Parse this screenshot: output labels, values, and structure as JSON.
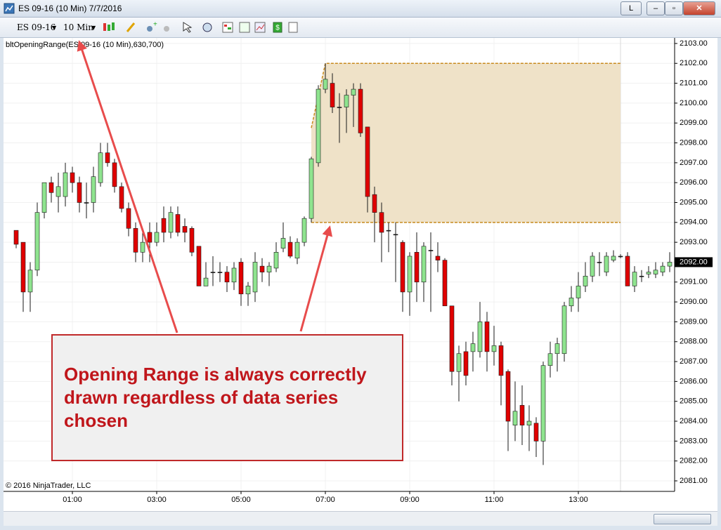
{
  "window": {
    "title": "ES 09-16 (10 Min)  7/7/2016",
    "link_button": "L"
  },
  "toolbar": {
    "instrument": "ES 09-16",
    "interval": "10 Min"
  },
  "chart_data": {
    "type": "candlestick",
    "indicator_label": "bltOpeningRange(ES 09-16 (10 Min),630,700)",
    "copyright": "© 2016 NinjaTrader, LLC",
    "up_color": "#8fe48f",
    "down_color": "#e00000",
    "outline_color": "#1a1a1a",
    "range_fill": "#efe2c8",
    "range_line_color": "#c88a1e",
    "grid": true,
    "x": [
      -20,
      -10,
      0,
      10,
      20,
      30,
      40,
      50,
      60,
      70,
      80,
      90,
      100,
      110,
      120,
      130,
      140,
      150,
      160,
      170,
      180,
      190,
      200,
      210,
      220,
      230,
      240,
      250,
      260,
      270,
      280,
      290,
      300,
      310,
      320,
      330,
      340,
      350,
      360,
      370,
      380,
      390,
      400,
      410,
      420,
      430,
      440,
      450,
      460,
      470,
      480,
      490,
      500,
      510,
      520,
      530,
      540,
      550,
      560,
      570,
      580,
      590,
      600,
      610,
      620,
      630,
      640,
      650,
      660,
      670,
      680,
      690,
      700,
      710,
      720,
      730,
      740,
      750,
      760,
      770,
      780,
      790,
      800,
      810,
      820,
      830,
      840,
      850,
      860,
      870,
      880,
      890,
      900,
      910
    ],
    "open": [
      2093.6,
      2093.0,
      2090.5,
      2091.6,
      2094.5,
      2096.0,
      2095.3,
      2095.3,
      2096.5,
      2096.0,
      2095.0,
      2095.0,
      2096.0,
      2097.5,
      2097.0,
      2095.8,
      2094.7,
      2093.7,
      2092.5,
      2093.5,
      2093.0,
      2094.2,
      2093.5,
      2094.4,
      2093.8,
      2093.7,
      2092.8,
      2090.8,
      2091.5,
      2091.5,
      2091.5,
      2091.0,
      2092.0,
      2090.4,
      2090.5,
      2091.8,
      2091.5,
      2091.7,
      2092.7,
      2093.0,
      2092.2,
      2093.0,
      2094.2,
      2097.0,
      2100.7,
      2101.0,
      2099.8,
      2099.8,
      2100.4,
      2100.7,
      2098.8,
      2095.4,
      2094.5,
      2093.6,
      2093.4,
      2093.0,
      2090.5,
      2092.5,
      2091.0,
      2092.6,
      2092.3,
      2092.1,
      2089.8,
      2086.5,
      2087.5,
      2087.5,
      2087.5,
      2089.0,
      2087.5,
      2087.8,
      2086.5,
      2083.8,
      2084.8,
      2083.8,
      2083.9,
      2083.0,
      2086.8,
      2087.4,
      2087.4,
      2089.8,
      2090.2,
      2090.8,
      2091.3,
      2092.0,
      2091.5,
      2092.1,
      2092.3,
      2092.3,
      2090.8,
      2091.3,
      2091.4,
      2091.4,
      2091.5,
      2091.8
    ],
    "high": [
      2093.6,
      2093.0,
      2092.0,
      2095.0,
      2096.0,
      2096.3,
      2096.5,
      2097.0,
      2096.8,
      2096.3,
      2096.0,
      2096.8,
      2098.0,
      2098.0,
      2097.2,
      2096.0,
      2095.0,
      2094.0,
      2093.5,
      2094.0,
      2094.0,
      2094.8,
      2094.8,
      2094.8,
      2094.2,
      2093.8,
      2092.8,
      2092.0,
      2092.3,
      2092.0,
      2091.8,
      2092.0,
      2092.2,
      2091.0,
      2092.5,
      2092.2,
      2092.0,
      2093.0,
      2094.0,
      2093.3,
      2093.2,
      2094.3,
      2097.3,
      2100.9,
      2102.0,
      2101.5,
      2100.5,
      2100.7,
      2101.0,
      2101.0,
      2098.8,
      2095.8,
      2095.0,
      2094.0,
      2094.0,
      2093.1,
      2092.5,
      2093.5,
      2093.0,
      2093.5,
      2093.0,
      2092.2,
      2089.8,
      2087.8,
      2088.0,
      2088.5,
      2090.0,
      2089.5,
      2088.8,
      2088.0,
      2086.6,
      2086.0,
      2085.8,
      2084.8,
      2084.2,
      2087.0,
      2088.0,
      2088.2,
      2090.0,
      2090.8,
      2091.5,
      2092.0,
      2092.5,
      2092.5,
      2092.5,
      2092.6,
      2092.4,
      2092.5,
      2091.8,
      2091.6,
      2091.8,
      2092.0,
      2092.0,
      2092.5
    ],
    "low": [
      2092.7,
      2089.5,
      2089.5,
      2091.3,
      2094.2,
      2095.0,
      2094.5,
      2094.8,
      2095.5,
      2094.5,
      2094.2,
      2094.5,
      2095.8,
      2096.8,
      2095.5,
      2094.5,
      2093.3,
      2092.0,
      2092.0,
      2092.0,
      2092.8,
      2093.0,
      2093.2,
      2093.3,
      2093.0,
      2092.3,
      2090.8,
      2090.8,
      2090.8,
      2091.0,
      2090.5,
      2090.6,
      2089.8,
      2089.8,
      2090.0,
      2091.0,
      2090.8,
      2091.5,
      2092.5,
      2092.2,
      2091.9,
      2092.8,
      2094.0,
      2096.8,
      2100.5,
      2099.5,
      2098.0,
      2098.5,
      2098.8,
      2098.3,
      2094.5,
      2093.0,
      2092.0,
      2092.5,
      2091.0,
      2089.5,
      2089.3,
      2090.0,
      2090.0,
      2089.5,
      2091.5,
      2089.8,
      2085.8,
      2085.0,
      2085.8,
      2086.5,
      2087.2,
      2086.5,
      2086.8,
      2084.8,
      2082.5,
      2083.0,
      2082.8,
      2082.5,
      2082.2,
      2081.8,
      2086.2,
      2086.5,
      2087.0,
      2089.5,
      2089.5,
      2090.5,
      2091.0,
      2091.3,
      2091.3,
      2092.0,
      2092.2,
      2090.8,
      2090.5,
      2091.0,
      2091.2,
      2091.2,
      2091.3,
      2091.5
    ],
    "close": [
      2092.9,
      2090.5,
      2091.6,
      2094.5,
      2096.0,
      2095.5,
      2095.8,
      2096.5,
      2096.0,
      2095.0,
      2095.0,
      2096.3,
      2097.5,
      2097.0,
      2095.8,
      2094.7,
      2093.7,
      2092.5,
      2093.0,
      2093.0,
      2093.5,
      2093.5,
      2094.5,
      2093.5,
      2093.5,
      2092.5,
      2090.8,
      2091.2,
      2091.5,
      2091.5,
      2091.0,
      2091.7,
      2090.4,
      2090.8,
      2092.0,
      2091.5,
      2091.8,
      2092.5,
      2093.2,
      2092.3,
      2093.0,
      2094.2,
      2097.2,
      2100.7,
      2101.2,
      2099.8,
      2099.8,
      2100.4,
      2100.7,
      2098.5,
      2095.3,
      2094.5,
      2093.5,
      2093.6,
      2093.4,
      2090.5,
      2092.3,
      2091.0,
      2092.8,
      2092.6,
      2092.1,
      2089.8,
      2086.5,
      2087.4,
      2086.3,
      2087.9,
      2089.0,
      2087.5,
      2087.8,
      2086.3,
      2084.0,
      2084.5,
      2083.8,
      2084.0,
      2083.0,
      2086.8,
      2087.4,
      2087.9,
      2089.8,
      2090.2,
      2090.8,
      2091.3,
      2092.3,
      2092.0,
      2092.3,
      2092.3,
      2092.3,
      2090.8,
      2091.5,
      2091.3,
      2091.5,
      2091.6,
      2091.8,
      2092.0
    ],
    "opening_range": {
      "start": 400,
      "end": 840,
      "high": 2102,
      "low": 2094
    },
    "last_price": {
      "value": 2092,
      "label": "2092.00"
    },
    "xlim": [
      -38,
      917
    ],
    "xticks": [
      {
        "value": 60,
        "label": "01:00"
      },
      {
        "value": 180,
        "label": "03:00"
      },
      {
        "value": 300,
        "label": "05:00"
      },
      {
        "value": 420,
        "label": "07:00"
      },
      {
        "value": 540,
        "label": "09:00"
      },
      {
        "value": 660,
        "label": "11:00"
      },
      {
        "value": 780,
        "label": "13:00"
      }
    ],
    "ylim": [
      2080.47,
      2103.28
    ],
    "yticks": [
      {
        "value": 2081,
        "label": "2081.00"
      },
      {
        "value": 2082,
        "label": "2082.00"
      },
      {
        "value": 2083,
        "label": "2083.00"
      },
      {
        "value": 2084,
        "label": "2084.00"
      },
      {
        "value": 2085,
        "label": "2085.00"
      },
      {
        "value": 2086,
        "label": "2086.00"
      },
      {
        "value": 2087,
        "label": "2087.00"
      },
      {
        "value": 2088,
        "label": "2088.00"
      },
      {
        "value": 2089,
        "label": "2089.00"
      },
      {
        "value": 2090,
        "label": "2090.00"
      },
      {
        "value": 2091,
        "label": "2091.00"
      },
      {
        "value": 2092,
        "label": "2092.00"
      },
      {
        "value": 2093,
        "label": "2093.00"
      },
      {
        "value": 2094,
        "label": "2094.00"
      },
      {
        "value": 2095,
        "label": "2095.00"
      },
      {
        "value": 2096,
        "label": "2096.00"
      },
      {
        "value": 2097,
        "label": "2097.00"
      },
      {
        "value": 2098,
        "label": "2098.00"
      },
      {
        "value": 2099,
        "label": "2099.00"
      },
      {
        "value": 2100,
        "label": "2100.00"
      },
      {
        "value": 2101,
        "label": "2101.00"
      },
      {
        "value": 2102,
        "label": "2102.00"
      },
      {
        "value": 2103,
        "label": "2103.00"
      }
    ]
  },
  "annotation": {
    "lines": [
      "Opening Range is always correctly",
      "drawn regardless of data series",
      "chosen"
    ],
    "arrow_color": "#e84c4c"
  }
}
